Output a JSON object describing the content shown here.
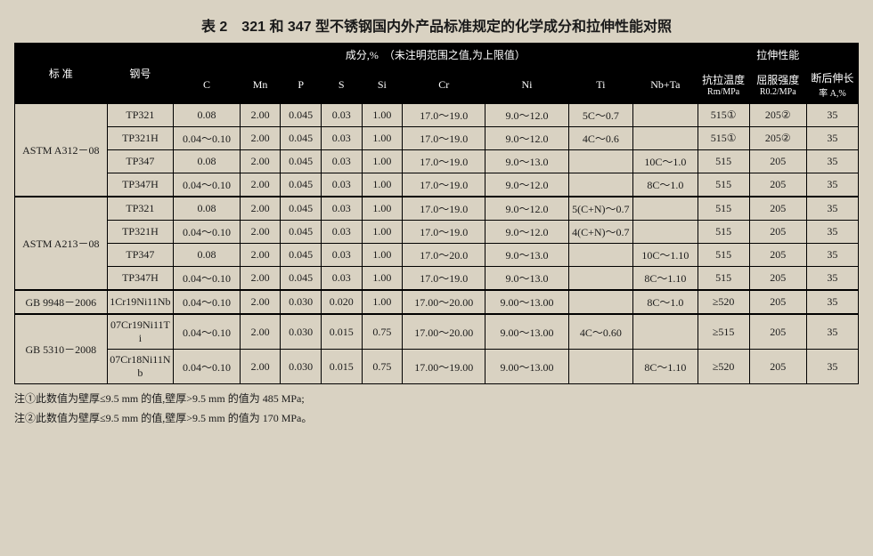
{
  "title": "表 2　321 和 347 型不锈钢国内外产品标准规定的化学成分和拉伸性能对照",
  "headers": {
    "std": "标 准",
    "grade": "钢号",
    "comp_title": "成分,%　（未注明范围之值,为上限值）",
    "tensile_title": "拉伸性能",
    "C": "C",
    "Mn": "Mn",
    "P": "P",
    "S": "S",
    "Si": "Si",
    "Cr": "Cr",
    "Ni": "Ni",
    "Ti": "Ti",
    "NbTa": "Nb+Ta",
    "Rm": "抗拉温度",
    "Rm_sub": "Rm/MPa",
    "R02": "屈服强度",
    "R02_sub": "R0.2/MPa",
    "A": "断后伸长",
    "A_sub": "率 A,%"
  },
  "groups": [
    {
      "std": "ASTM A312－08",
      "rows": [
        {
          "grade": "TP321",
          "C": "0.08",
          "Mn": "2.00",
          "P": "0.045",
          "S": "0.03",
          "Si": "1.00",
          "Cr": "17.0～19.0",
          "Ni": "9.0～12.0",
          "Ti": "5C～0.7",
          "NbTa": "",
          "Rm": "515①",
          "R02": "205②",
          "A": "35"
        },
        {
          "grade": "TP321H",
          "C": "0.04～0.10",
          "Mn": "2.00",
          "P": "0.045",
          "S": "0.03",
          "Si": "1.00",
          "Cr": "17.0～19.0",
          "Ni": "9.0～12.0",
          "Ti": "4C～0.6",
          "NbTa": "",
          "Rm": "515①",
          "R02": "205②",
          "A": "35"
        },
        {
          "grade": "TP347",
          "C": "0.08",
          "Mn": "2.00",
          "P": "0.045",
          "S": "0.03",
          "Si": "1.00",
          "Cr": "17.0～19.0",
          "Ni": "9.0～13.0",
          "Ti": "",
          "NbTa": "10C～1.0",
          "Rm": "515",
          "R02": "205",
          "A": "35"
        },
        {
          "grade": "TP347H",
          "C": "0.04～0.10",
          "Mn": "2.00",
          "P": "0.045",
          "S": "0.03",
          "Si": "1.00",
          "Cr": "17.0～19.0",
          "Ni": "9.0～12.0",
          "Ti": "",
          "NbTa": "8C～1.0",
          "Rm": "515",
          "R02": "205",
          "A": "35"
        }
      ]
    },
    {
      "std": "ASTM A213－08",
      "rows": [
        {
          "grade": "TP321",
          "C": "0.08",
          "Mn": "2.00",
          "P": "0.045",
          "S": "0.03",
          "Si": "1.00",
          "Cr": "17.0～19.0",
          "Ni": "9.0～12.0",
          "Ti": "5(C+N)～0.7",
          "NbTa": "",
          "Rm": "515",
          "R02": "205",
          "A": "35"
        },
        {
          "grade": "TP321H",
          "C": "0.04～0.10",
          "Mn": "2.00",
          "P": "0.045",
          "S": "0.03",
          "Si": "1.00",
          "Cr": "17.0～19.0",
          "Ni": "9.0～12.0",
          "Ti": "4(C+N)～0.7",
          "NbTa": "",
          "Rm": "515",
          "R02": "205",
          "A": "35"
        },
        {
          "grade": "TP347",
          "C": "0.08",
          "Mn": "2.00",
          "P": "0.045",
          "S": "0.03",
          "Si": "1.00",
          "Cr": "17.0～20.0",
          "Ni": "9.0～13.0",
          "Ti": "",
          "NbTa": "10C～1.10",
          "Rm": "515",
          "R02": "205",
          "A": "35"
        },
        {
          "grade": "TP347H",
          "C": "0.04～0.10",
          "Mn": "2.00",
          "P": "0.045",
          "S": "0.03",
          "Si": "1.00",
          "Cr": "17.0～19.0",
          "Ni": "9.0～13.0",
          "Ti": "",
          "NbTa": "8C～1.10",
          "Rm": "515",
          "R02": "205",
          "A": "35"
        }
      ]
    },
    {
      "std": "GB 9948－2006",
      "rows": [
        {
          "grade": "1Cr19Ni11Nb",
          "C": "0.04～0.10",
          "Mn": "2.00",
          "P": "0.030",
          "S": "0.020",
          "Si": "1.00",
          "Cr": "17.00～20.00",
          "Ni": "9.00～13.00",
          "Ti": "",
          "NbTa": "8C～1.0",
          "Rm": "≥520",
          "R02": "205",
          "A": "35"
        }
      ]
    },
    {
      "std": "GB 5310－2008",
      "rows": [
        {
          "grade": "07Cr19Ni11Ti",
          "C": "0.04～0.10",
          "Mn": "2.00",
          "P": "0.030",
          "S": "0.015",
          "Si": "0.75",
          "Cr": "17.00～20.00",
          "Ni": "9.00～13.00",
          "Ti": "4C～0.60",
          "NbTa": "",
          "Rm": "≥515",
          "R02": "205",
          "A": "35"
        },
        {
          "grade": "07Cr18Ni11Nb",
          "C": "0.04～0.10",
          "Mn": "2.00",
          "P": "0.030",
          "S": "0.015",
          "Si": "0.75",
          "Cr": "17.00～19.00",
          "Ni": "9.00～13.00",
          "Ti": "",
          "NbTa": "8C～1.10",
          "Rm": "≥520",
          "R02": "205",
          "A": "35"
        }
      ]
    }
  ],
  "notes": [
    "注①此数值为壁厚≤9.5 mm 的值,壁厚>9.5 mm 的值为 485 MPa;",
    "注②此数值为壁厚≤9.5 mm 的值,壁厚>9.5 mm 的值为 170 MPa。"
  ]
}
